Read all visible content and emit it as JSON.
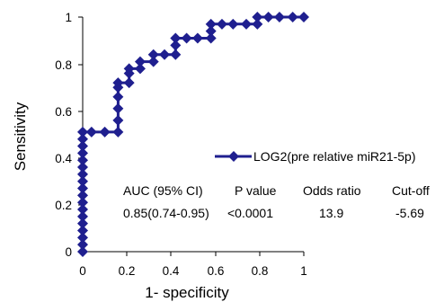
{
  "chart_data": {
    "type": "line",
    "xlabel": "1- specificity",
    "ylabel": "Sensitivity",
    "xlim": [
      0,
      1
    ],
    "ylim": [
      0,
      1
    ],
    "x_ticks": [
      "0",
      "0.2",
      "0.4",
      "0.6",
      "0.8",
      "1"
    ],
    "y_ticks": [
      "0",
      "0.2",
      "0.4",
      "0.6",
      "0.8",
      "1"
    ],
    "x_tick_values": [
      0,
      0.2,
      0.4,
      0.6,
      0.8,
      1
    ],
    "y_tick_values": [
      0,
      0.2,
      0.4,
      0.6,
      0.8,
      1
    ],
    "grid": false,
    "legend_placement": "right",
    "series": [
      {
        "name": "LOG2(pre relative miR21-5p)",
        "color": "#1f1f8f",
        "marker": "diamond",
        "points": [
          [
            0,
            0
          ],
          [
            0,
            0.03
          ],
          [
            0,
            0.06
          ],
          [
            0,
            0.09
          ],
          [
            0,
            0.12
          ],
          [
            0,
            0.15
          ],
          [
            0,
            0.18
          ],
          [
            0,
            0.21
          ],
          [
            0,
            0.24
          ],
          [
            0,
            0.27
          ],
          [
            0,
            0.3
          ],
          [
            0,
            0.33
          ],
          [
            0,
            0.36
          ],
          [
            0,
            0.39
          ],
          [
            0,
            0.42
          ],
          [
            0,
            0.45
          ],
          [
            0,
            0.48
          ],
          [
            0,
            0.51
          ],
          [
            0.04,
            0.51
          ],
          [
            0.1,
            0.51
          ],
          [
            0.16,
            0.51
          ],
          [
            0.16,
            0.56
          ],
          [
            0.16,
            0.61
          ],
          [
            0.16,
            0.66
          ],
          [
            0.16,
            0.7
          ],
          [
            0.16,
            0.72
          ],
          [
            0.21,
            0.72
          ],
          [
            0.21,
            0.76
          ],
          [
            0.21,
            0.78
          ],
          [
            0.26,
            0.78
          ],
          [
            0.26,
            0.81
          ],
          [
            0.32,
            0.81
          ],
          [
            0.32,
            0.84
          ],
          [
            0.37,
            0.84
          ],
          [
            0.42,
            0.84
          ],
          [
            0.42,
            0.88
          ],
          [
            0.42,
            0.91
          ],
          [
            0.47,
            0.91
          ],
          [
            0.52,
            0.91
          ],
          [
            0.58,
            0.91
          ],
          [
            0.58,
            0.94
          ],
          [
            0.58,
            0.97
          ],
          [
            0.63,
            0.97
          ],
          [
            0.68,
            0.97
          ],
          [
            0.74,
            0.97
          ],
          [
            0.79,
            0.97
          ],
          [
            0.79,
            1.0
          ],
          [
            0.84,
            1.0
          ],
          [
            0.89,
            1.0
          ],
          [
            0.95,
            1.0
          ],
          [
            1.0,
            1.0
          ]
        ]
      }
    ],
    "stats_table": {
      "headers": [
        "AUC (95% CI)",
        "P value",
        "Odds ratio",
        "Cut-off"
      ],
      "values": [
        "0.85(0.74-0.95)",
        "<0.0001",
        "13.9",
        "-5.69"
      ]
    }
  }
}
